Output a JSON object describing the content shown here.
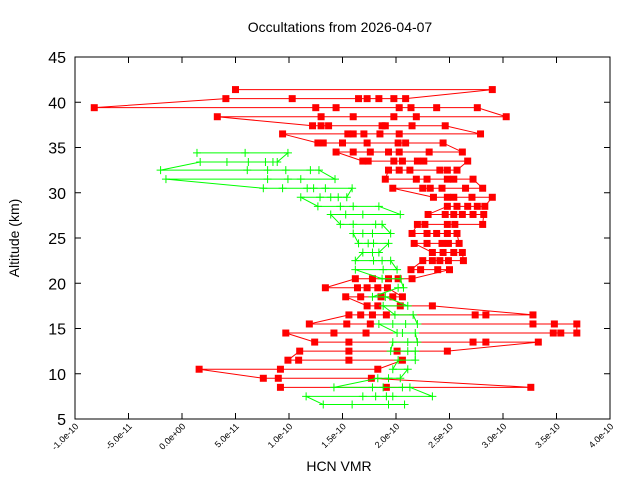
{
  "chart_data": {
    "type": "line",
    "title": "Occultations from 2026-04-07",
    "xlabel": "HCN VMR",
    "ylabel": "Altitude (km)",
    "xlim": [
      -1e-10,
      4e-10
    ],
    "ylim": [
      5,
      45
    ],
    "x_ticks": [
      -1e-10,
      -5e-11,
      0,
      5e-11,
      1e-10,
      1.5e-10,
      2e-10,
      2.5e-10,
      3e-10,
      3.5e-10,
      4e-10
    ],
    "x_tick_labels": [
      "-1.0e-10",
      "-5.0e-11",
      "0.0e+00",
      "5.0e-11",
      "1.0e-10",
      "1.5e-10",
      "2.0e-10",
      "2.5e-10",
      "3.0e-10",
      "3.5e-10",
      "4.0e-10"
    ],
    "y_ticks": [
      5,
      10,
      15,
      20,
      25,
      30,
      35,
      40,
      45
    ],
    "y_tick_labels": [
      "5",
      "10",
      "15",
      "20",
      "25",
      "30",
      "35",
      "40",
      "45"
    ],
    "grid": false,
    "legend": "none",
    "series": [
      {
        "color": "#ff0000",
        "marker": "square",
        "rows": [
          {
            "alt": 41.4,
            "x": [
              5e-11,
              2.9e-10
            ]
          },
          {
            "alt": 40.4,
            "x": [
              4.1e-11,
              1.03e-10,
              1.65e-10,
              1.73e-10,
              1.84e-10,
              1.98e-10,
              2.09e-10
            ]
          },
          {
            "alt": 39.4,
            "x": [
              -8.2e-11,
              1.25e-10,
              1.44e-10,
              2.03e-10,
              2.14e-10,
              2.38e-10,
              2.76e-10
            ]
          },
          {
            "alt": 38.4,
            "x": [
              3.3e-11,
              1.3e-10,
              1.6e-10,
              1.98e-10,
              2.19e-10,
              3.03e-10
            ]
          },
          {
            "alt": 37.4,
            "x": [
              1.22e-10,
              1.3e-10,
              1.37e-10,
              1.87e-10,
              1.9e-10,
              2.15e-10,
              2.46e-10
            ]
          },
          {
            "alt": 36.5,
            "x": [
              9.4e-11,
              1.55e-10,
              1.6e-10,
              1.7e-10,
              1.85e-10,
              2.03e-10,
              2.79e-10
            ]
          },
          {
            "alt": 35.5,
            "x": [
              1.27e-10,
              1.32e-10,
              1.5e-10,
              1.73e-10,
              2.02e-10,
              2.09e-10,
              2.44e-10
            ]
          },
          {
            "alt": 34.5,
            "x": [
              1.44e-10,
              1.6e-10,
              1.76e-10,
              1.93e-10,
              2.03e-10,
              2.31e-10,
              2.62e-10
            ]
          },
          {
            "alt": 33.5,
            "x": [
              1.69e-10,
              1.74e-10,
              1.98e-10,
              2.06e-10,
              2.2e-10,
              2.26e-10,
              2.67e-10
            ]
          },
          {
            "alt": 32.5,
            "x": [
              1.93e-10,
              2.03e-10,
              2.13e-10,
              2.41e-10,
              2.48e-10,
              2.57e-10
            ]
          },
          {
            "alt": 31.5,
            "x": [
              1.9e-10,
              2.19e-10,
              2.29e-10,
              2.48e-10,
              2.54e-10,
              2.72e-10
            ]
          },
          {
            "alt": 30.5,
            "x": [
              1.97e-10,
              2.25e-10,
              2.32e-10,
              2.43e-10,
              2.65e-10,
              2.81e-10
            ]
          },
          {
            "alt": 29.5,
            "x": [
              2.35e-10,
              2.48e-10,
              2.54e-10,
              2.71e-10,
              2.9e-10
            ]
          },
          {
            "alt": 28.5,
            "x": [
              2.48e-10,
              2.57e-10,
              2.67e-10,
              2.76e-10,
              2.83e-10
            ]
          },
          {
            "alt": 27.6,
            "x": [
              2.3e-10,
              2.46e-10,
              2.54e-10,
              2.62e-10,
              2.72e-10,
              2.82e-10
            ]
          },
          {
            "alt": 26.5,
            "x": [
              2.2e-10,
              2.27e-10,
              2.48e-10,
              2.55e-10,
              2.81e-10
            ]
          },
          {
            "alt": 25.5,
            "x": [
              2.15e-10,
              2.29e-10,
              2.38e-10,
              2.48e-10,
              2.57e-10
            ]
          },
          {
            "alt": 24.4,
            "x": [
              2.17e-10,
              2.29e-10,
              2.43e-10,
              2.49e-10,
              2.59e-10
            ]
          },
          {
            "alt": 23.4,
            "x": [
              2.34e-10,
              2.44e-10,
              2.54e-10,
              2.62e-10
            ]
          },
          {
            "alt": 22.5,
            "x": [
              2.25e-10,
              2.34e-10,
              2.41e-10,
              2.49e-10,
              2.63e-10
            ]
          },
          {
            "alt": 21.5,
            "x": [
              2.14e-10,
              2.23e-10,
              2.39e-10,
              2.5e-10
            ]
          },
          {
            "alt": 20.5,
            "x": [
              1.62e-10,
              1.78e-10,
              1.93e-10,
              2.02e-10,
              2.15e-10
            ]
          },
          {
            "alt": 19.5,
            "x": [
              1.34e-10,
              1.64e-10,
              1.73e-10,
              1.83e-10,
              1.92e-10
            ]
          },
          {
            "alt": 18.5,
            "x": [
              1.53e-10,
              1.67e-10,
              1.86e-10,
              1.97e-10,
              2.06e-10
            ]
          },
          {
            "alt": 17.5,
            "x": [
              1.73e-10,
              1.83e-10,
              2.04e-10,
              2.34e-10
            ]
          },
          {
            "alt": 16.5,
            "x": [
              1.56e-10,
              1.67e-10,
              1.78e-10,
              1.91e-10,
              2.74e-10,
              2.84e-10,
              3.28e-10
            ]
          },
          {
            "alt": 15.5,
            "x": [
              1.19e-10,
              1.54e-10,
              1.76e-10,
              3.28e-10,
              3.48e-10,
              3.69e-10
            ]
          },
          {
            "alt": 14.5,
            "x": [
              9.7e-11,
              1.42e-10,
              1.72e-10,
              3.47e-10,
              3.54e-10,
              3.69e-10
            ]
          },
          {
            "alt": 13.5,
            "x": [
              1.24e-10,
              1.56e-10,
              2.72e-10,
              2.84e-10,
              3.33e-10
            ]
          },
          {
            "alt": 12.5,
            "x": [
              1.1e-10,
              1.56e-10,
              2.01e-10,
              2.48e-10
            ]
          },
          {
            "alt": 11.5,
            "x": [
              9.9e-11,
              1.09e-10,
              1.56e-10,
              2.06e-10
            ]
          },
          {
            "alt": 10.5,
            "x": [
              1.6e-11,
              9.2e-11,
              1.83e-10
            ]
          },
          {
            "alt": 9.5,
            "x": [
              7.6e-11,
              9e-11,
              1.77e-10
            ]
          },
          {
            "alt": 8.5,
            "x": [
              9.2e-11,
              1.91e-10,
              3.26e-10
            ]
          }
        ]
      },
      {
        "color": "#00ff00",
        "marker": "plus",
        "rows": [
          {
            "alt": 34.4,
            "x": [
              1.4e-11,
              5.9e-11,
              9.9e-11
            ]
          },
          {
            "alt": 33.4,
            "x": [
              1.7e-11,
              4.2e-11,
              6.2e-11,
              7.8e-11,
              8.5e-11,
              8.9e-11
            ]
          },
          {
            "alt": 32.5,
            "x": [
              -2e-11,
              6.1e-11,
              8e-11,
              9.7e-11,
              1.2e-10,
              1.28e-10
            ]
          },
          {
            "alt": 31.5,
            "x": [
              -1.5e-11,
              8e-11,
              9.9e-11,
              1.11e-10,
              1.43e-10
            ]
          },
          {
            "alt": 30.5,
            "x": [
              7.6e-11,
              9.4e-11,
              1.17e-10,
              1.23e-10,
              1.34e-10,
              1.59e-10
            ]
          },
          {
            "alt": 29.5,
            "x": [
              1.11e-10,
              1.29e-10,
              1.39e-10,
              1.46e-10,
              1.54e-10
            ]
          },
          {
            "alt": 28.5,
            "x": [
              1.27e-10,
              1.48e-10,
              1.6e-10,
              1.84e-10
            ]
          },
          {
            "alt": 27.6,
            "x": [
              1.39e-10,
              1.53e-10,
              1.69e-10,
              2.04e-10
            ]
          },
          {
            "alt": 26.5,
            "x": [
              1.48e-10,
              1.6e-10,
              1.81e-10,
              1.87e-10
            ]
          },
          {
            "alt": 25.5,
            "x": [
              1.6e-10,
              1.69e-10,
              1.78e-10,
              1.95e-10
            ]
          },
          {
            "alt": 24.4,
            "x": [
              1.65e-10,
              1.74e-10,
              1.79e-10,
              1.93e-10
            ]
          },
          {
            "alt": 23.4,
            "x": [
              1.69e-10,
              1.78e-10,
              1.84e-10
            ]
          },
          {
            "alt": 22.5,
            "x": [
              1.62e-10,
              1.79e-10,
              1.87e-10,
              1.95e-10
            ]
          },
          {
            "alt": 21.5,
            "x": [
              1.62e-10,
              1.88e-10,
              2.01e-10
            ]
          },
          {
            "alt": 20.5,
            "x": [
              1.87e-10,
              2.04e-10
            ]
          },
          {
            "alt": 19.5,
            "x": [
              2.02e-10,
              2.07e-10
            ]
          },
          {
            "alt": 18.5,
            "x": [
              1.78e-10,
              1.9e-10
            ]
          },
          {
            "alt": 17.5,
            "x": [
              1.88e-10,
              2.11e-10
            ]
          },
          {
            "alt": 16.5,
            "x": [
              1.99e-10,
              2.16e-10
            ]
          },
          {
            "alt": 15.5,
            "x": [
              1.84e-10,
              1.97e-10,
              2.09e-10,
              2.2e-10
            ]
          },
          {
            "alt": 14.5,
            "x": [
              2.01e-10,
              2.06e-10,
              2.18e-10
            ]
          },
          {
            "alt": 13.5,
            "x": [
              1.97e-10,
              2.11e-10,
              2.2e-10
            ]
          },
          {
            "alt": 12.5,
            "x": [
              1.95e-10,
              2.11e-10,
              2.18e-10
            ]
          },
          {
            "alt": 11.5,
            "x": [
              2.02e-10,
              2.18e-10
            ]
          },
          {
            "alt": 10.5,
            "x": [
              1.97e-10,
              2.11e-10
            ]
          },
          {
            "alt": 9.5,
            "x": [
              1.83e-10,
              1.93e-10,
              2.04e-10
            ]
          },
          {
            "alt": 8.5,
            "x": [
              1.42e-10,
              1.78e-10,
              1.88e-10,
              2.06e-10,
              2.13e-10
            ]
          },
          {
            "alt": 7.5,
            "x": [
              1.16e-10,
              1.69e-10,
              1.81e-10,
              1.91e-10,
              1.97e-10,
              2.34e-10
            ]
          },
          {
            "alt": 6.6,
            "x": [
              1.32e-10,
              1.59e-10,
              1.93e-10,
              2.08e-10
            ]
          }
        ]
      }
    ]
  }
}
